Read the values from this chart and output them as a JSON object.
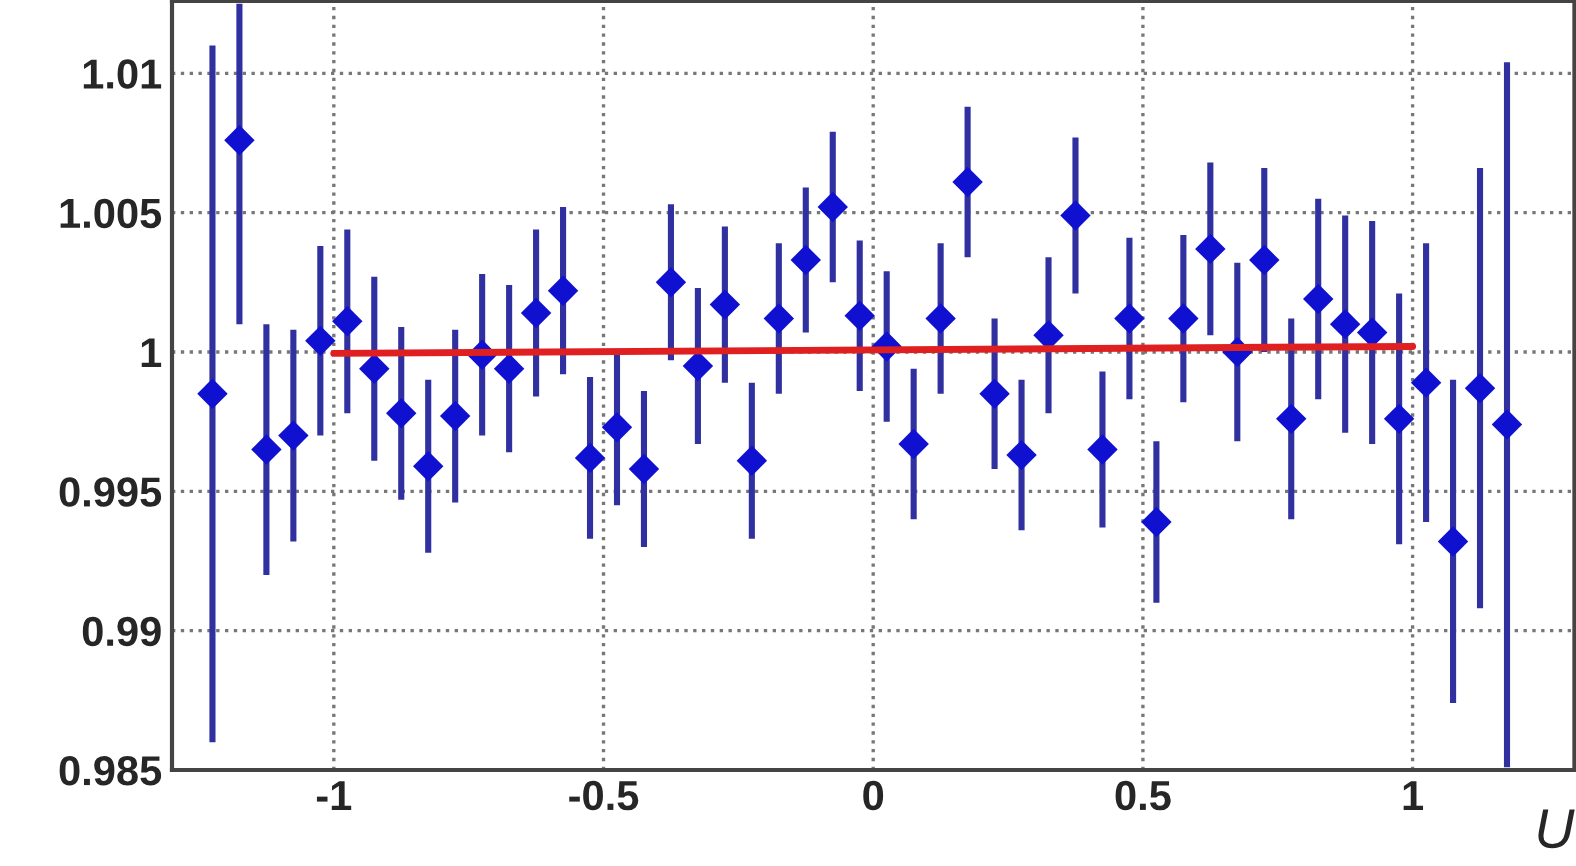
{
  "chart_data": {
    "type": "scatter",
    "xlabel": "U",
    "series": [
      {
        "color": "#1010d0",
        "marker": "diamond",
        "x": [
          -1.225,
          -1.175,
          -1.125,
          -1.075,
          -1.025,
          -0.975,
          -0.925,
          -0.875,
          -0.825,
          -0.775,
          -0.725,
          -0.675,
          -0.625,
          -0.575,
          -0.525,
          -0.475,
          -0.425,
          -0.375,
          -0.325,
          -0.275,
          -0.225,
          -0.175,
          -0.125,
          -0.075,
          -0.025,
          0.025,
          0.075,
          0.125,
          0.175,
          0.225,
          0.275,
          0.325,
          0.375,
          0.425,
          0.475,
          0.525,
          0.575,
          0.625,
          0.675,
          0.725,
          0.775,
          0.825,
          0.875,
          0.925,
          0.975,
          1.025,
          1.075,
          1.125,
          1.175
        ],
        "values": [
          0.9985,
          1.0076,
          0.9965,
          0.997,
          1.0004,
          1.0011,
          0.9994,
          0.9978,
          0.9959,
          0.9977,
          0.9999,
          0.9994,
          1.0014,
          1.0022,
          0.9962,
          0.9973,
          0.9958,
          1.0025,
          0.9995,
          1.0017,
          0.9961,
          1.0012,
          1.0033,
          1.0052,
          1.0013,
          1.0002,
          0.9967,
          1.0012,
          1.0061,
          0.9985,
          0.9963,
          1.0006,
          1.0049,
          0.9965,
          1.0012,
          0.9939,
          1.0012,
          1.0037,
          1.0,
          1.0033,
          0.9976,
          1.0019,
          1.001,
          1.0007,
          0.9976,
          0.9989,
          0.9932,
          0.9987,
          0.9974
        ],
        "errors": [
          0.0125,
          [
            1.001,
            1.0125
          ],
          0.0045,
          0.0038,
          0.0034,
          0.0033,
          0.0033,
          0.0031,
          0.0031,
          0.0031,
          0.0029,
          0.003,
          0.003,
          0.003,
          0.0029,
          0.0028,
          0.0028,
          0.0028,
          0.0028,
          0.0028,
          0.0028,
          0.0027,
          0.0026,
          0.0027,
          0.0027,
          0.0027,
          0.0027,
          0.0027,
          0.0027,
          0.0027,
          0.0027,
          0.0028,
          0.0028,
          0.0028,
          0.0029,
          0.0029,
          0.003,
          0.0031,
          0.0032,
          0.0033,
          0.0036,
          0.0036,
          0.0039,
          0.004,
          0.0045,
          0.005,
          0.0058,
          0.0079,
          [
            0.9851,
            1.0104
          ]
        ]
      },
      {
        "type": "line",
        "color": "#e02020",
        "marker": "none",
        "x": [
          -1,
          1
        ],
        "values": [
          0.99995,
          1.0002
        ]
      }
    ],
    "xlim": [
      -1.3,
      1.3
    ],
    "ylim": [
      0.985,
      1.0126
    ],
    "xticks": [
      -1,
      -0.5,
      0,
      0.5,
      1
    ],
    "yticks": [
      0.985,
      0.99,
      0.995,
      1,
      1.005,
      1.01
    ],
    "grid": true
  }
}
